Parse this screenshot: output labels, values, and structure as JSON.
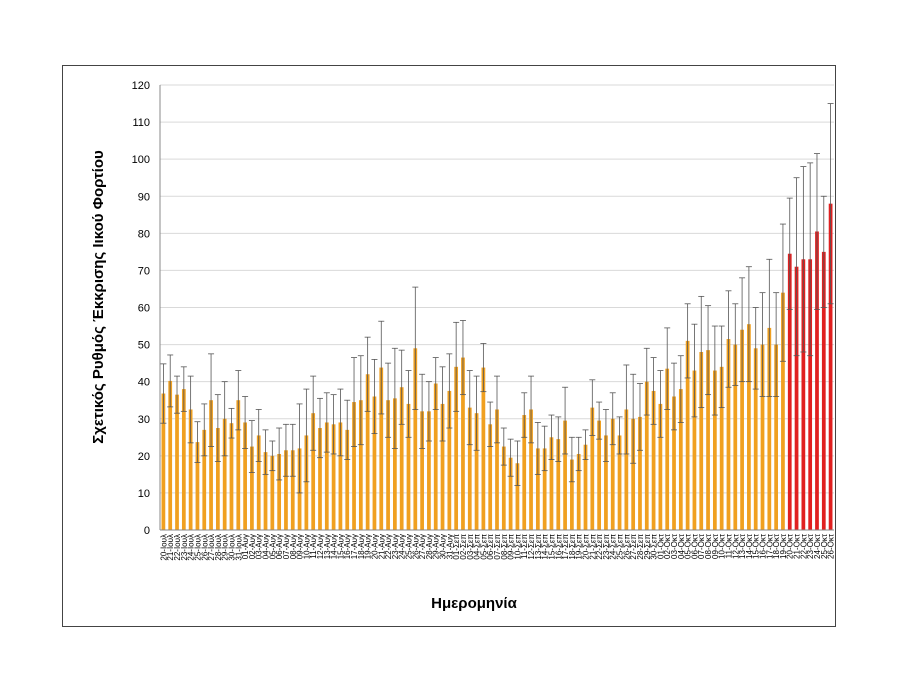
{
  "chart_data": {
    "type": "bar",
    "title": "",
    "xlabel": "Ημερομηνία",
    "ylabel": "Σχετικός Ρυθμός Έκκρισης Ιικού Φορτίου",
    "ylim": [
      0,
      120
    ],
    "yticks": [
      0,
      10,
      20,
      30,
      40,
      50,
      60,
      70,
      80,
      90,
      100,
      110,
      120
    ],
    "grid": true,
    "legend": "none",
    "colors": {
      "bar": "#f0a020",
      "highlight": "#e02020",
      "error": "#555555",
      "grid": "#d9d9d9"
    },
    "highlight_from_index": 92,
    "categories": [
      "20-Ιουλ",
      "21-Ιουλ",
      "22-Ιουλ",
      "23-Ιουλ",
      "24-Ιουλ",
      "25-Ιουλ",
      "26-Ιουλ",
      "27-Ιουλ",
      "28-Ιουλ",
      "29-Ιουλ",
      "30-Ιουλ",
      "31-Ιουλ",
      "01-Αυγ",
      "02-Αυγ",
      "03-Αυγ",
      "04-Αυγ",
      "05-Αυγ",
      "06-Αυγ",
      "07-Αυγ",
      "08-Αυγ",
      "09-Αυγ",
      "10-Αυγ",
      "11-Αυγ",
      "12-Αυγ",
      "13-Αυγ",
      "14-Αυγ",
      "15-Αυγ",
      "16-Αυγ",
      "17-Αυγ",
      "18-Αυγ",
      "19-Αυγ",
      "20-Αυγ",
      "21-Αυγ",
      "22-Αυγ",
      "23-Αυγ",
      "24-Αυγ",
      "25-Αυγ",
      "26-Αυγ",
      "27-Αυγ",
      "28-Αυγ",
      "29-Αυγ",
      "30-Αυγ",
      "31-Αυγ",
      "01-Σεπ",
      "02-Σεπ",
      "03-Σεπ",
      "04-Σεπ",
      "05-Σεπ",
      "06-Σεπ",
      "07-Σεπ",
      "08-Σεπ",
      "09-Σεπ",
      "10-Σεπ",
      "11-Σεπ",
      "12-Σεπ",
      "13-Σεπ",
      "14-Σεπ",
      "15-Σεπ",
      "16-Σεπ",
      "17-Σεπ",
      "18-Σεπ",
      "19-Σεπ",
      "20-Σεπ",
      "21-Σεπ",
      "22-Σεπ",
      "23-Σεπ",
      "24-Σεπ",
      "25-Σεπ",
      "26-Σεπ",
      "27-Σεπ",
      "28-Σεπ",
      "29-Σεπ",
      "30-Σεπ",
      "01-Οκτ",
      "02-Οκτ",
      "03-Οκτ",
      "04-Οκτ",
      "05-Οκτ",
      "06-Οκτ",
      "07-Οκτ",
      "08-Οκτ",
      "09-Οκτ",
      "10-Οκτ",
      "11-Οκτ",
      "12-Οκτ",
      "13-Οκτ",
      "14-Οκτ",
      "15-Οκτ",
      "16-Οκτ",
      "17-Οκτ",
      "18-Οκτ",
      "19-Οκτ",
      "20-Οκτ",
      "21-Οκτ",
      "22-Οκτ",
      "23-Οκτ",
      "24-Οκτ",
      "25-Οκτ",
      "26-Οκτ"
    ],
    "values": [
      36.8,
      40.2,
      36.5,
      38.0,
      32.5,
      23.7,
      27.0,
      35.0,
      27.5,
      30.0,
      28.8,
      35.0,
      29.0,
      22.5,
      25.5,
      21.0,
      20.0,
      20.5,
      21.5,
      21.5,
      22.0,
      25.5,
      31.5,
      27.5,
      29.0,
      28.5,
      29.0,
      27.0,
      34.5,
      35.0,
      42.0,
      36.0,
      43.8,
      35.0,
      35.5,
      38.5,
      34.0,
      49.0,
      32.0,
      32.0,
      39.5,
      34.0,
      37.5,
      44.0,
      46.5,
      33.0,
      31.5,
      43.8,
      28.5,
      32.5,
      22.5,
      19.5,
      18.0,
      31.0,
      32.5,
      22.0,
      22.0,
      25.0,
      24.5,
      29.5,
      19.0,
      20.5,
      23.0,
      33.0,
      29.5,
      25.5,
      30.0,
      25.5,
      32.5,
      30.0,
      30.5,
      40.0,
      37.5,
      34.0,
      43.5,
      36.0,
      38.0,
      51.0,
      43.0,
      48.0,
      48.5,
      43.0,
      44.0,
      51.5,
      50.0,
      54.0,
      55.5,
      49.0,
      50.0,
      54.5,
      50.0,
      64.0,
      74.5,
      71.0,
      73.0,
      73.0,
      80.5,
      75.0,
      88.0
    ],
    "errors": [
      8,
      7,
      5,
      6,
      9,
      5.5,
      7,
      12.5,
      9,
      10,
      4,
      8,
      7,
      7,
      7,
      6,
      4,
      7,
      7,
      7,
      12,
      12.5,
      10,
      8,
      8,
      8,
      9,
      8,
      12,
      12,
      10,
      10,
      12.5,
      10,
      13.5,
      10,
      9,
      16.5,
      10,
      8,
      7,
      10,
      10,
      12,
      10,
      10,
      10,
      6.5,
      6,
      9,
      5,
      5,
      6,
      6,
      9,
      7,
      6,
      6,
      6,
      9,
      6,
      4.5,
      4,
      7.5,
      5,
      7,
      7,
      5,
      12,
      12,
      9,
      9,
      9,
      9,
      11,
      9,
      9,
      10,
      12.5,
      15,
      12,
      12,
      11,
      13,
      11,
      14,
      15.5,
      11,
      14,
      18.5,
      14,
      18.5,
      15,
      24,
      25,
      26,
      21,
      15,
      27
    ]
  }
}
